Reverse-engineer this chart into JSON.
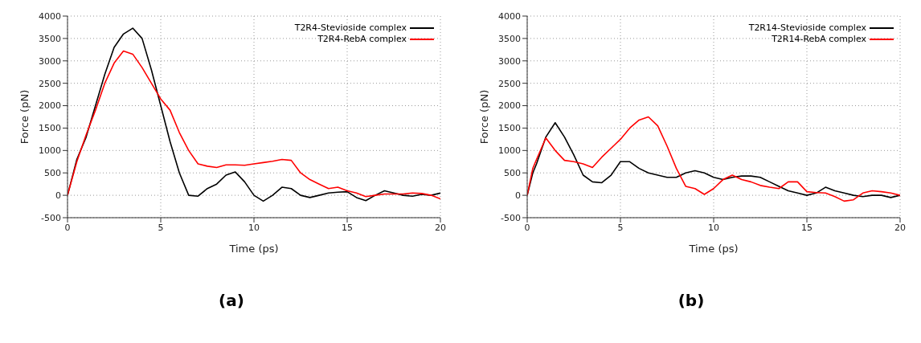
{
  "chart_data": [
    {
      "type": "line",
      "xlabel": "Time (ps)",
      "ylabel": "Force (pN)",
      "annotations": [
        "(a)"
      ],
      "xlim": [
        0,
        20
      ],
      "xticks": [
        0,
        5,
        10,
        15,
        20
      ],
      "ylim": [
        -500,
        4000
      ],
      "yticks": [
        -500,
        0,
        500,
        1000,
        1500,
        2000,
        2500,
        3000,
        3500,
        4000
      ],
      "grid": true,
      "legend": "top right",
      "x": [
        0,
        0.5,
        1,
        1.5,
        2,
        2.5,
        3,
        3.5,
        4,
        4.5,
        5,
        5.5,
        6,
        6.5,
        7,
        7.5,
        8,
        8.5,
        9,
        9.5,
        10,
        10.5,
        11,
        11.5,
        12,
        12.5,
        13,
        13.5,
        14,
        14.5,
        15,
        15.5,
        16,
        16.5,
        17,
        17.5,
        18,
        18.5,
        19,
        19.5,
        20
      ],
      "series": [
        {
          "name": "T2R4-Stevioside complex",
          "color": "#000000",
          "values": [
            0,
            800,
            1300,
            2000,
            2700,
            3300,
            3600,
            3730,
            3500,
            2800,
            2000,
            1200,
            500,
            0,
            -20,
            150,
            250,
            450,
            520,
            300,
            0,
            -130,
            0,
            180,
            150,
            0,
            -50,
            0,
            50,
            70,
            80,
            -50,
            -120,
            0,
            100,
            50,
            0,
            -20,
            20,
            0,
            50
          ]
        },
        {
          "name": "T2R4-RebA complex",
          "color": "#ff0000",
          "values": [
            0,
            750,
            1350,
            1900,
            2500,
            2950,
            3220,
            3150,
            2850,
            2500,
            2150,
            1900,
            1400,
            1000,
            700,
            650,
            620,
            680,
            680,
            670,
            700,
            730,
            760,
            800,
            780,
            500,
            350,
            250,
            150,
            180,
            100,
            50,
            -30,
            0,
            30,
            30,
            30,
            50,
            40,
            0,
            -80
          ]
        }
      ]
    },
    {
      "type": "line",
      "xlabel": "Time (ps)",
      "ylabel": "Force (pN)",
      "annotations": [
        "(b)"
      ],
      "xlim": [
        0,
        20
      ],
      "xticks": [
        0,
        5,
        10,
        15,
        20
      ],
      "ylim": [
        -500,
        4000
      ],
      "yticks": [
        -500,
        0,
        500,
        1000,
        1500,
        2000,
        2500,
        3000,
        3500,
        4000
      ],
      "grid": true,
      "legend": "top right",
      "x": [
        0,
        0.3,
        0.5,
        1,
        1.5,
        2,
        2.5,
        3,
        3.5,
        4,
        4.5,
        5,
        5.5,
        6,
        6.5,
        7,
        7.5,
        8,
        8.5,
        9,
        9.5,
        10,
        10.5,
        11,
        11.5,
        12,
        12.5,
        13,
        13.5,
        14,
        14.5,
        15,
        15.5,
        16,
        16.5,
        17,
        17.5,
        18,
        18.5,
        19,
        19.5,
        20
      ],
      "series": [
        {
          "name": "T2R14-Stevioside complex",
          "color": "#000000",
          "values": [
            0,
            500,
            700,
            1300,
            1620,
            1300,
            900,
            450,
            300,
            280,
            450,
            750,
            750,
            600,
            500,
            450,
            400,
            400,
            500,
            550,
            500,
            400,
            350,
            400,
            430,
            430,
            400,
            300,
            200,
            100,
            50,
            0,
            50,
            180,
            100,
            50,
            0,
            -30,
            0,
            0,
            -50,
            0
          ]
        },
        {
          "name": "T2R14-RebA complex",
          "color": "#ff0000",
          "values": [
            0,
            600,
            800,
            1280,
            1000,
            780,
            750,
            700,
            620,
            850,
            1050,
            1250,
            1500,
            1680,
            1750,
            1550,
            1100,
            600,
            200,
            150,
            20,
            150,
            350,
            450,
            350,
            300,
            220,
            180,
            150,
            300,
            300,
            80,
            60,
            50,
            -30,
            -130,
            -100,
            50,
            100,
            80,
            50,
            0
          ]
        }
      ]
    }
  ]
}
